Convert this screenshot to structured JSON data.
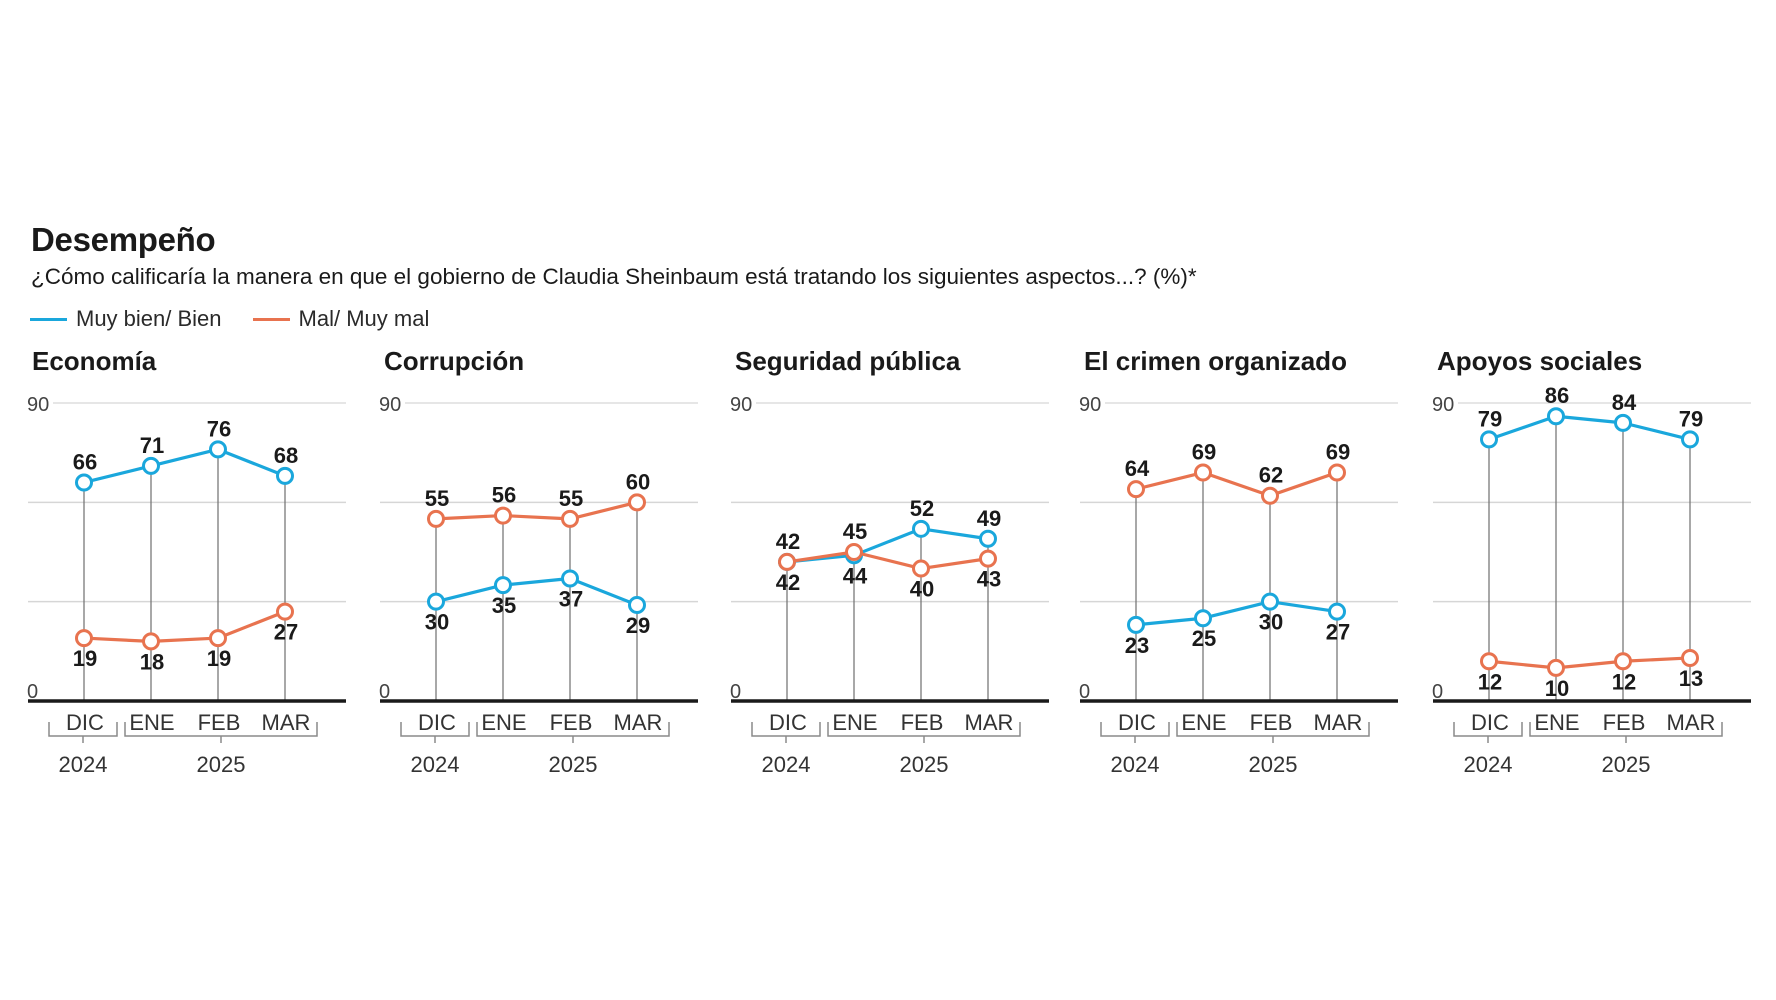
{
  "header": {
    "title": "Desempeño",
    "subtitle": "¿Cómo calificaría la manera en que el gobierno de Claudia Sheinbaum está tratando los siguientes aspectos...?  (%)*"
  },
  "legend": [
    {
      "label": "Muy bien/ Bien",
      "color": "#1aa7dc"
    },
    {
      "label": "Mal/ Muy mal",
      "color": "#e8734f"
    }
  ],
  "chart_data": [
    {
      "type": "line",
      "title": "Economía",
      "categories": [
        "DIC",
        "ENE",
        "FEB",
        "MAR"
      ],
      "year_groups": [
        {
          "label": "2024",
          "months": [
            "DIC"
          ]
        },
        {
          "label": "2025",
          "months": [
            "ENE",
            "FEB",
            "MAR"
          ]
        }
      ],
      "ylim": [
        0,
        90
      ],
      "yticks": [
        0,
        90
      ],
      "gridlines": [
        30,
        60,
        90
      ],
      "series": [
        {
          "name": "Muy bien/ Bien",
          "color": "#1aa7dc",
          "values": [
            66,
            71,
            76,
            68
          ]
        },
        {
          "name": "Mal/ Muy mal",
          "color": "#e8734f",
          "values": [
            19,
            18,
            19,
            27
          ]
        }
      ]
    },
    {
      "type": "line",
      "title": "Corrupción",
      "categories": [
        "DIC",
        "ENE",
        "FEB",
        "MAR"
      ],
      "year_groups": [
        {
          "label": "2024",
          "months": [
            "DIC"
          ]
        },
        {
          "label": "2025",
          "months": [
            "ENE",
            "FEB",
            "MAR"
          ]
        }
      ],
      "ylim": [
        0,
        90
      ],
      "yticks": [
        0,
        90
      ],
      "gridlines": [
        30,
        60,
        90
      ],
      "series": [
        {
          "name": "Muy bien/ Bien",
          "color": "#1aa7dc",
          "values": [
            30,
            35,
            37,
            29
          ]
        },
        {
          "name": "Mal/ Muy mal",
          "color": "#e8734f",
          "values": [
            55,
            56,
            55,
            60
          ]
        }
      ]
    },
    {
      "type": "line",
      "title": "Seguridad pública",
      "categories": [
        "DIC",
        "ENE",
        "FEB",
        "MAR"
      ],
      "year_groups": [
        {
          "label": "2024",
          "months": [
            "DIC"
          ]
        },
        {
          "label": "2025",
          "months": [
            "ENE",
            "FEB",
            "MAR"
          ]
        }
      ],
      "ylim": [
        0,
        90
      ],
      "yticks": [
        0,
        90
      ],
      "gridlines": [
        30,
        60,
        90
      ],
      "series": [
        {
          "name": "Muy bien/ Bien",
          "color": "#1aa7dc",
          "values": [
            42,
            44,
            52,
            49
          ]
        },
        {
          "name": "Mal/ Muy mal",
          "color": "#e8734f",
          "values": [
            42,
            45,
            40,
            43
          ]
        }
      ]
    },
    {
      "type": "line",
      "title": "El crimen organizado",
      "categories": [
        "DIC",
        "ENE",
        "FEB",
        "MAR"
      ],
      "year_groups": [
        {
          "label": "2024",
          "months": [
            "DIC"
          ]
        },
        {
          "label": "2025",
          "months": [
            "ENE",
            "FEB",
            "MAR"
          ]
        }
      ],
      "ylim": [
        0,
        90
      ],
      "yticks": [
        0,
        90
      ],
      "gridlines": [
        30,
        60,
        90
      ],
      "series": [
        {
          "name": "Muy bien/ Bien",
          "color": "#1aa7dc",
          "values": [
            23,
            25,
            30,
            27
          ]
        },
        {
          "name": "Mal/ Muy mal",
          "color": "#e8734f",
          "values": [
            64,
            69,
            62,
            69
          ]
        }
      ]
    },
    {
      "type": "line",
      "title": "Apoyos sociales",
      "categories": [
        "DIC",
        "ENE",
        "FEB",
        "MAR"
      ],
      "year_groups": [
        {
          "label": "2024",
          "months": [
            "DIC"
          ]
        },
        {
          "label": "2025",
          "months": [
            "ENE",
            "FEB",
            "MAR"
          ]
        }
      ],
      "ylim": [
        0,
        90
      ],
      "yticks": [
        0,
        90
      ],
      "gridlines": [
        30,
        60,
        90
      ],
      "series": [
        {
          "name": "Muy bien/ Bien",
          "color": "#1aa7dc",
          "values": [
            79,
            86,
            84,
            79
          ]
        },
        {
          "name": "Mal/ Muy mal",
          "color": "#e8734f",
          "values": [
            12,
            10,
            12,
            13
          ]
        }
      ]
    }
  ]
}
